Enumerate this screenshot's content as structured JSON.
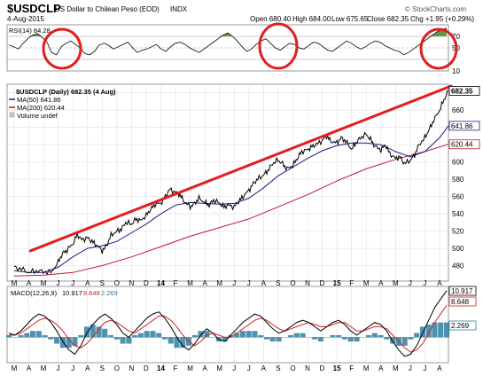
{
  "header": {
    "symbol": "$USDCLP",
    "name": "US Dollar to Chilean Peso (EOD)",
    "exchange": "INDX",
    "date": "4-Aug-2015",
    "open": "Open 680.40",
    "high": "High 684.00",
    "low": "Low 675.65",
    "close": "Close 682.35",
    "chg": "Chg +1.95 (+0.29%)",
    "watermark": "© StockCharts.com"
  },
  "legend": {
    "main": "$USDCLP (Daily) 682.35 (4 Aug)",
    "ma50": "MA(50) 641.86",
    "ma200": "MA(200) 620.44",
    "volume": "Volume undef",
    "rsi": "RSI(14) 84.28",
    "macd_name": "MACD(12,26,9)",
    "macd_v1": "10.917",
    "macd_v2": "8.648",
    "macd_v3": "2.269"
  },
  "colors": {
    "price": "#000000",
    "ma50": "#1b1b8c",
    "ma200": "#c0182c",
    "trendline": "#e02020",
    "annotation_circles": "#e02020",
    "rsi_fill": "#5e9a4a",
    "macd_line": "#000000",
    "signal_line": "#d42020",
    "histogram": "#2f7fa3"
  },
  "chart_data": {
    "type": "line",
    "months": [
      "M",
      "A",
      "M",
      "J",
      "J",
      "A",
      "S",
      "O",
      "N",
      "D",
      "14",
      "F",
      "M",
      "A",
      "M",
      "J",
      "J",
      "A",
      "S",
      "O",
      "N",
      "D",
      "15",
      "F",
      "M",
      "A",
      "M",
      "J",
      "J",
      "A"
    ],
    "price_axis": {
      "ylim": [
        462,
        690
      ],
      "ticks": [
        480,
        500,
        520,
        540,
        560,
        580,
        600,
        620,
        640,
        660,
        680
      ],
      "value_tags": [
        "682.35",
        "641.86",
        "620.44"
      ]
    },
    "series": [
      {
        "name": "$USDCLP",
        "points": [
          [
            0,
            478
          ],
          [
            0.5,
            476
          ],
          [
            1,
            472
          ],
          [
            1.5,
            474
          ],
          [
            2,
            473
          ],
          [
            2.5,
            472
          ],
          [
            3,
            484
          ],
          [
            3.3,
            494
          ],
          [
            3.6,
            498
          ],
          [
            4,
            505
          ],
          [
            4.3,
            516
          ],
          [
            4.6,
            510
          ],
          [
            5,
            512
          ],
          [
            5.3,
            508
          ],
          [
            5.6,
            504
          ],
          [
            6,
            497
          ],
          [
            6.3,
            503
          ],
          [
            6.6,
            515
          ],
          [
            7,
            520
          ],
          [
            7.3,
            522
          ],
          [
            7.6,
            530
          ],
          [
            8,
            528
          ],
          [
            8.3,
            534
          ],
          [
            8.6,
            532
          ],
          [
            9,
            538
          ],
          [
            9.3,
            545
          ],
          [
            9.6,
            551
          ],
          [
            10,
            552
          ],
          [
            10.3,
            560
          ],
          [
            10.6,
            568
          ],
          [
            11,
            565
          ],
          [
            11.3,
            562
          ],
          [
            11.6,
            554
          ],
          [
            12,
            548
          ],
          [
            12.3,
            552
          ],
          [
            12.6,
            558
          ],
          [
            13,
            553
          ],
          [
            13.3,
            550
          ],
          [
            13.6,
            556
          ],
          [
            14,
            552
          ],
          [
            14.3,
            548
          ],
          [
            14.6,
            550
          ],
          [
            15,
            548
          ],
          [
            15.3,
            554
          ],
          [
            15.6,
            560
          ],
          [
            16,
            567
          ],
          [
            16.3,
            575
          ],
          [
            16.6,
            580
          ],
          [
            17,
            585
          ],
          [
            17.3,
            590
          ],
          [
            17.6,
            598
          ],
          [
            18,
            602
          ],
          [
            18.3,
            598
          ],
          [
            18.6,
            592
          ],
          [
            19,
            596
          ],
          [
            19.3,
            604
          ],
          [
            19.6,
            612
          ],
          [
            20,
            614
          ],
          [
            20.3,
            618
          ],
          [
            20.6,
            620
          ],
          [
            21,
            625
          ],
          [
            21.3,
            630
          ],
          [
            21.6,
            624
          ],
          [
            22,
            622
          ],
          [
            22.3,
            628
          ],
          [
            22.6,
            624
          ],
          [
            23,
            615
          ],
          [
            23.3,
            622
          ],
          [
            23.6,
            628
          ],
          [
            24,
            632
          ],
          [
            24.3,
            626
          ],
          [
            24.6,
            618
          ],
          [
            25,
            614
          ],
          [
            25.3,
            620
          ],
          [
            25.6,
            610
          ],
          [
            26,
            604
          ],
          [
            26.3,
            606
          ],
          [
            26.6,
            598
          ],
          [
            27,
            602
          ],
          [
            27.3,
            608
          ],
          [
            27.6,
            620
          ],
          [
            28,
            628
          ],
          [
            28.3,
            638
          ],
          [
            28.6,
            648
          ],
          [
            29,
            660
          ],
          [
            29.3,
            672
          ],
          [
            29.6,
            682
          ]
        ]
      },
      {
        "name": "MA(50)",
        "points": [
          [
            0,
            474
          ],
          [
            1,
            472
          ],
          [
            2,
            472
          ],
          [
            3,
            478
          ],
          [
            4,
            490
          ],
          [
            5,
            500
          ],
          [
            6,
            503
          ],
          [
            7,
            508
          ],
          [
            8,
            518
          ],
          [
            9,
            528
          ],
          [
            10,
            540
          ],
          [
            11,
            550
          ],
          [
            12,
            553
          ],
          [
            13,
            552
          ],
          [
            14,
            551
          ],
          [
            15,
            552
          ],
          [
            16,
            558
          ],
          [
            17,
            570
          ],
          [
            18,
            584
          ],
          [
            19,
            594
          ],
          [
            20,
            604
          ],
          [
            21,
            613
          ],
          [
            22,
            619
          ],
          [
            23,
            622
          ],
          [
            24,
            622
          ],
          [
            25,
            620
          ],
          [
            26,
            612
          ],
          [
            27,
            606
          ],
          [
            28,
            612
          ],
          [
            29,
            628
          ],
          [
            29.6,
            641.86
          ]
        ]
      },
      {
        "name": "MA(200)",
        "points": [
          [
            0,
            468
          ],
          [
            2,
            469
          ],
          [
            4,
            472
          ],
          [
            6,
            480
          ],
          [
            8,
            490
          ],
          [
            10,
            502
          ],
          [
            12,
            514
          ],
          [
            14,
            524
          ],
          [
            16,
            534
          ],
          [
            18,
            548
          ],
          [
            20,
            562
          ],
          [
            22,
            578
          ],
          [
            24,
            592
          ],
          [
            26,
            603
          ],
          [
            28,
            612
          ],
          [
            29.6,
            620.44
          ]
        ]
      }
    ],
    "trendline": [
      [
        1.1,
        497
      ],
      [
        29.8,
        688
      ]
    ],
    "rsi": {
      "ylim": [
        10,
        90
      ],
      "levels": [
        70,
        50,
        30
      ],
      "tick_labels": [
        "70",
        "50",
        "10"
      ],
      "values": [
        55,
        52,
        48,
        58,
        66,
        72,
        75,
        68,
        60,
        42,
        38,
        52,
        58,
        62,
        56,
        50,
        40,
        38,
        44,
        55,
        58,
        54,
        48,
        52,
        56,
        60,
        50,
        42,
        46,
        48,
        52,
        56,
        48,
        44,
        52,
        58,
        60,
        56,
        50,
        46,
        42,
        48,
        54,
        60,
        66,
        72,
        76,
        70,
        62,
        52,
        44,
        48,
        56,
        62,
        66,
        58,
        50,
        46,
        52,
        58,
        56,
        50,
        48,
        54,
        60,
        58,
        52,
        46,
        44,
        50,
        56,
        62,
        58,
        52,
        48,
        52,
        58,
        62,
        60,
        54,
        50,
        46,
        44,
        38,
        42,
        48,
        54,
        60,
        66,
        72,
        78,
        82,
        84
      ]
    },
    "macd": {
      "axis_labels": [
        "10.917",
        "8.648",
        "2.269"
      ],
      "macd_line": [
        2,
        1,
        3,
        6,
        9,
        11,
        10,
        7,
        3,
        -2,
        -6,
        -8,
        -4,
        2,
        6,
        9,
        11,
        9,
        6,
        2,
        0,
        3,
        6,
        9,
        11,
        12,
        9,
        5,
        0,
        -4,
        -6,
        -3,
        1,
        4,
        2,
        -1,
        -2,
        1,
        4,
        7,
        9,
        11,
        10,
        7,
        4,
        2,
        3,
        5,
        7,
        8,
        7,
        5,
        3,
        5,
        7,
        8,
        6,
        3,
        1,
        3,
        5,
        7,
        6,
        3,
        -2,
        -6,
        -9,
        -8,
        -4,
        2,
        8,
        14,
        18,
        22
      ],
      "signal_line": [
        1,
        1,
        2,
        4,
        6,
        8,
        9,
        8,
        6,
        3,
        -1,
        -4,
        -5,
        -3,
        0,
        4,
        7,
        8,
        7,
        5,
        3,
        2,
        4,
        6,
        8,
        10,
        10,
        8,
        5,
        1,
        -2,
        -4,
        -2,
        1,
        2,
        1,
        0,
        0,
        2,
        4,
        6,
        8,
        9,
        8,
        6,
        4,
        3,
        4,
        5,
        6,
        7,
        6,
        5,
        5,
        6,
        7,
        7,
        5,
        3,
        3,
        4,
        5,
        5,
        4,
        1,
        -2,
        -5,
        -7,
        -6,
        -3,
        2,
        7,
        11,
        15
      ]
    }
  }
}
